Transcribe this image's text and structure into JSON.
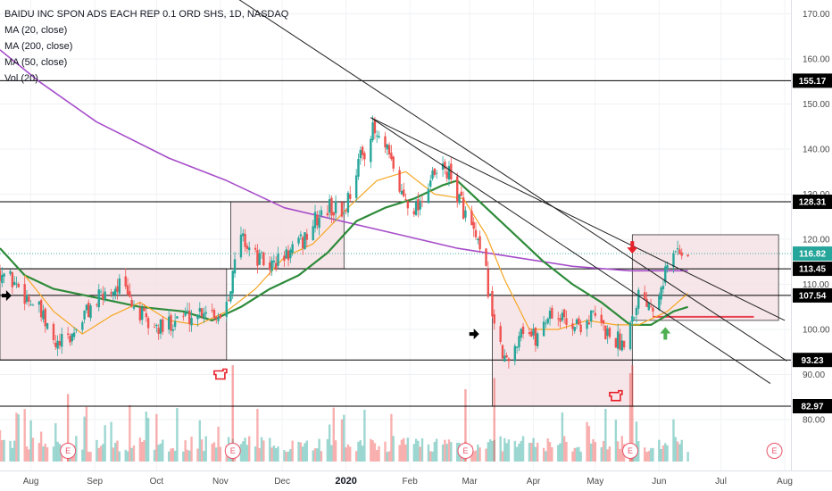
{
  "legend": {
    "title": "BAIDU INC SPON ADS EACH REP 0.1 ORD SHS, 1D, NASDAQ",
    "ma20": "MA (20, close)",
    "ma200": "MA (200, close)",
    "ma50": "MA (50, close)",
    "vol": "Vol (20)"
  },
  "colors": {
    "up": "#26a69a",
    "down": "#ef5350",
    "ma20": "#f5a623",
    "ma50": "#2e8b3a",
    "ma200": "#a64dc9",
    "box_fill": "#f4dde2",
    "trendline": "#222222",
    "support": "#000000",
    "current_price": "#26a69a",
    "event": "#e8536a",
    "red_line": "#e8404f"
  },
  "chart_data": {
    "type": "candlestick",
    "title": "BAIDU INC SPON ADS EACH REP 0.1 ORD SHS, 1D, NASDAQ",
    "x_labels": [
      "Aug",
      "Sep",
      "Oct",
      "Nov",
      "Dec",
      "2020",
      "Feb",
      "Mar",
      "Apr",
      "May",
      "Jun",
      "Jul",
      "Aug"
    ],
    "y_ticks": [
      80,
      90,
      100,
      110,
      120,
      130,
      140,
      150,
      160,
      170
    ],
    "y_tick_labels": [
      "80.00",
      "90.00",
      "100.00",
      "110.00",
      "120.00",
      "130.00",
      "140.00",
      "150.00",
      "160.00",
      "170.00"
    ],
    "ylim": [
      70,
      174
    ],
    "horizontal_levels": [
      {
        "value": 155.17,
        "label": "155.17"
      },
      {
        "value": 128.31,
        "label": "128.31"
      },
      {
        "value": 113.45,
        "label": "113.45"
      },
      {
        "value": 107.54,
        "label": "107.54"
      },
      {
        "value": 93.23,
        "label": "93.23"
      },
      {
        "value": 82.97,
        "label": "82.97"
      }
    ],
    "current_price": {
      "value": 116.82,
      "label": "116.82"
    },
    "close_path": [
      [
        "2019-07-17",
        113
      ],
      [
        "2019-07-25",
        110
      ],
      [
        "2019-08-05",
        104
      ],
      [
        "2019-08-13",
        96
      ],
      [
        "2019-08-20",
        98
      ],
      [
        "2019-08-28",
        104
      ],
      [
        "2019-09-06",
        108
      ],
      [
        "2019-09-13",
        110
      ],
      [
        "2019-09-20",
        105
      ],
      [
        "2019-09-27",
        101
      ],
      [
        "2019-10-04",
        100
      ],
      [
        "2019-10-11",
        103
      ],
      [
        "2019-10-18",
        103
      ],
      [
        "2019-10-25",
        105
      ],
      [
        "2019-11-01",
        103
      ],
      [
        "2019-11-06",
        110
      ],
      [
        "2019-11-11",
        121
      ],
      [
        "2019-11-18",
        116
      ],
      [
        "2019-11-25",
        114
      ],
      [
        "2019-12-02",
        116
      ],
      [
        "2019-12-10",
        119
      ],
      [
        "2019-12-17",
        124
      ],
      [
        "2019-12-24",
        127
      ],
      [
        "2019-12-31",
        126
      ],
      [
        "2020-01-07",
        137
      ],
      [
        "2020-01-14",
        144
      ],
      [
        "2020-01-21",
        139
      ],
      [
        "2020-01-28",
        130
      ],
      [
        "2020-02-04",
        127
      ],
      [
        "2020-02-11",
        133
      ],
      [
        "2020-02-18",
        136
      ],
      [
        "2020-02-25",
        129
      ],
      [
        "2020-03-03",
        121
      ],
      [
        "2020-03-09",
        112
      ],
      [
        "2020-03-12",
        104
      ],
      [
        "2020-03-16",
        95
      ],
      [
        "2020-03-20",
        92
      ],
      [
        "2020-03-26",
        101
      ],
      [
        "2020-04-02",
        98
      ],
      [
        "2020-04-09",
        104
      ],
      [
        "2020-04-16",
        102
      ],
      [
        "2020-04-23",
        101
      ],
      [
        "2020-04-30",
        103
      ],
      [
        "2020-05-07",
        99
      ],
      [
        "2020-05-14",
        97
      ],
      [
        "2020-05-19",
        103
      ],
      [
        "2020-05-22",
        108
      ],
      [
        "2020-05-29",
        106
      ],
      [
        "2020-06-05",
        114
      ],
      [
        "2020-06-10",
        118
      ],
      [
        "2020-06-15",
        116.82
      ]
    ],
    "ma20": [
      [
        "2019-07-29",
        112
      ],
      [
        "2019-08-12",
        104
      ],
      [
        "2019-08-26",
        99
      ],
      [
        "2019-09-09",
        103
      ],
      [
        "2019-09-23",
        106
      ],
      [
        "2019-10-07",
        102
      ],
      [
        "2019-10-21",
        101
      ],
      [
        "2019-11-04",
        104
      ],
      [
        "2019-11-18",
        109
      ],
      [
        "2019-12-02",
        116
      ],
      [
        "2019-12-16",
        119
      ],
      [
        "2020-01-02",
        127
      ],
      [
        "2020-01-16",
        133
      ],
      [
        "2020-01-30",
        135
      ],
      [
        "2020-02-13",
        130
      ],
      [
        "2020-02-27",
        129
      ],
      [
        "2020-03-09",
        121
      ],
      [
        "2020-03-18",
        111
      ],
      [
        "2020-03-30",
        100
      ],
      [
        "2020-04-13",
        100
      ],
      [
        "2020-04-27",
        102
      ],
      [
        "2020-05-11",
        101
      ],
      [
        "2020-05-22",
        101
      ],
      [
        "2020-06-05",
        104
      ],
      [
        "2020-06-15",
        108
      ]
    ],
    "ma50": [
      [
        "2019-07-17",
        118
      ],
      [
        "2019-07-29",
        112
      ],
      [
        "2019-08-12",
        109
      ],
      [
        "2019-09-02",
        107
      ],
      [
        "2019-09-23",
        105
      ],
      [
        "2019-10-14",
        104
      ],
      [
        "2019-10-28",
        102
      ],
      [
        "2019-11-11",
        105
      ],
      [
        "2019-11-25",
        109
      ],
      [
        "2019-12-09",
        112
      ],
      [
        "2019-12-23",
        117
      ],
      [
        "2020-01-06",
        124
      ],
      [
        "2020-01-20",
        127
      ],
      [
        "2020-02-03",
        129
      ],
      [
        "2020-02-17",
        132
      ],
      [
        "2020-02-24",
        133
      ],
      [
        "2020-03-09",
        127
      ],
      [
        "2020-03-23",
        121
      ],
      [
        "2020-04-06",
        115
      ],
      [
        "2020-04-20",
        110
      ],
      [
        "2020-05-04",
        106
      ],
      [
        "2020-05-18",
        101
      ],
      [
        "2020-05-28",
        101
      ],
      [
        "2020-06-08",
        104
      ],
      [
        "2020-06-15",
        105
      ]
    ],
    "ma200": [
      [
        "2019-07-17",
        162
      ],
      [
        "2019-08-05",
        155
      ],
      [
        "2019-09-02",
        146
      ],
      [
        "2019-10-07",
        138
      ],
      [
        "2019-11-04",
        133
      ],
      [
        "2019-12-02",
        127
      ],
      [
        "2019-12-30",
        124
      ],
      [
        "2020-01-27",
        121
      ],
      [
        "2020-02-24",
        118
      ],
      [
        "2020-03-23",
        116
      ],
      [
        "2020-04-20",
        114
      ],
      [
        "2020-05-18",
        113
      ],
      [
        "2020-06-15",
        113
      ]
    ],
    "volume_scale": [
      0,
      60
    ],
    "trendlines": [
      {
        "from": [
          "2019-10-25",
          178
        ],
        "to": [
          "2020-08-02",
          93
        ]
      },
      {
        "from": [
          "2020-01-13",
          147
        ],
        "to": [
          "2020-08-01",
          102
        ]
      },
      {
        "from": [
          "2020-01-13",
          147
        ],
        "to": [
          "2020-07-25",
          88
        ]
      }
    ],
    "boxes": [
      {
        "from": "2019-07-17",
        "to": "2019-11-04",
        "low": 93.23,
        "high": 113.45
      },
      {
        "from": "2019-11-06",
        "to": "2019-12-31",
        "low": 113.45,
        "high": 128.31
      },
      {
        "from": "2020-03-12",
        "to": "2020-05-19",
        "low": 82.97,
        "high": 107.54
      },
      {
        "from": "2020-05-19",
        "to": "2020-07-29",
        "low": 102,
        "high": 121
      }
    ],
    "red_level": {
      "from": "2020-05-29",
      "to": "2020-07-17",
      "value": 102.8
    },
    "earnings_markers": [
      "2019-08-19",
      "2019-11-07",
      "2020-02-28",
      "2020-05-18",
      "2020-07-27"
    ],
    "event_label": "E",
    "annotations": [
      {
        "type": "arrow-right",
        "date": "2019-07-20",
        "value": 107.5,
        "color": "black"
      },
      {
        "type": "arrow-right",
        "date": "2020-03-03",
        "value": 99.0,
        "color": "black"
      },
      {
        "type": "arrow-down",
        "date": "2020-05-19",
        "value": 118.0,
        "color": "red"
      },
      {
        "type": "arrow-up",
        "date": "2020-06-04",
        "value": 99.3,
        "color": "green"
      },
      {
        "type": "hand-pointer",
        "date": "2019-11-01",
        "value": 90.0,
        "color": "red"
      },
      {
        "type": "hand-pointer",
        "date": "2020-05-11",
        "value": 85.2,
        "color": "red"
      }
    ]
  }
}
